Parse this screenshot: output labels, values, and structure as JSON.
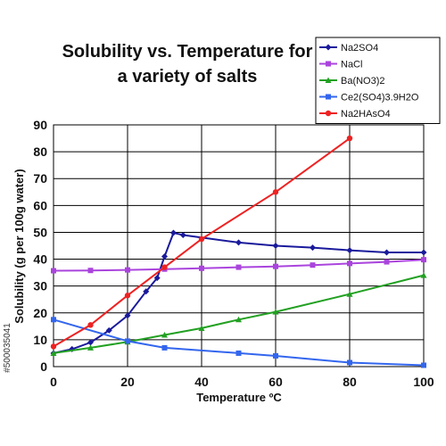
{
  "chart_data": {
    "type": "line",
    "title_lines": [
      "Solubility vs. Temperature for",
      "a variety of salts"
    ],
    "xlabel": "Temperature ºC",
    "ylabel": "Solubility (g per 100g water)",
    "xlim": [
      0,
      100
    ],
    "ylim": [
      0,
      90
    ],
    "x_ticks": [
      "0",
      "20",
      "40",
      "60",
      "80",
      "100"
    ],
    "y_ticks": [
      "0",
      "10",
      "20",
      "30",
      "40",
      "50",
      "60",
      "70",
      "80",
      "90"
    ],
    "grid": true,
    "legend_placement": "top-right",
    "series": [
      {
        "name": "Na2SO4",
        "color": "#1a1a9c",
        "marker": "diamond",
        "points": [
          [
            0,
            5
          ],
          [
            5,
            6.5
          ],
          [
            10,
            9
          ],
          [
            15,
            13.5
          ],
          [
            20,
            19
          ],
          [
            25,
            28
          ],
          [
            28,
            33
          ],
          [
            30,
            41
          ],
          [
            32.4,
            49.8
          ],
          [
            35,
            49
          ],
          [
            50,
            46.2
          ],
          [
            60,
            45
          ],
          [
            70,
            44.3
          ],
          [
            80,
            43.3
          ],
          [
            90,
            42.5
          ],
          [
            100,
            42.5
          ]
        ]
      },
      {
        "name": "NaCl",
        "color": "#aa44dd",
        "marker": "square",
        "points": [
          [
            0,
            35.7
          ],
          [
            10,
            35.8
          ],
          [
            20,
            36
          ],
          [
            30,
            36.3
          ],
          [
            40,
            36.6
          ],
          [
            50,
            37
          ],
          [
            60,
            37.3
          ],
          [
            70,
            37.8
          ],
          [
            80,
            38.4
          ],
          [
            90,
            39
          ],
          [
            100,
            39.8
          ]
        ]
      },
      {
        "name": "Ba(NO3)2",
        "color": "#22a022",
        "marker": "triangle",
        "points": [
          [
            0,
            5
          ],
          [
            10,
            7
          ],
          [
            20,
            9.2
          ],
          [
            30,
            11.8
          ],
          [
            40,
            14.3
          ],
          [
            50,
            17.5
          ],
          [
            60,
            20.4
          ],
          [
            80,
            27
          ],
          [
            100,
            34
          ]
        ]
      },
      {
        "name": "Ce2(SO4)3.9H2O",
        "color": "#3366ee",
        "marker": "square",
        "points": [
          [
            0,
            17.5
          ],
          [
            20,
            9.5
          ],
          [
            30,
            7
          ],
          [
            50,
            5
          ],
          [
            60,
            4
          ],
          [
            80,
            1.5
          ],
          [
            100,
            0.5
          ]
        ]
      },
      {
        "name": "Na2HAsO4",
        "color": "#ee2222",
        "marker": "circle",
        "points": [
          [
            0,
            7.5
          ],
          [
            10,
            15.5
          ],
          [
            20,
            26.5
          ],
          [
            30,
            37
          ],
          [
            40,
            47.5
          ],
          [
            60,
            65
          ],
          [
            80,
            85
          ]
        ]
      }
    ]
  },
  "side_id": "#500035041"
}
